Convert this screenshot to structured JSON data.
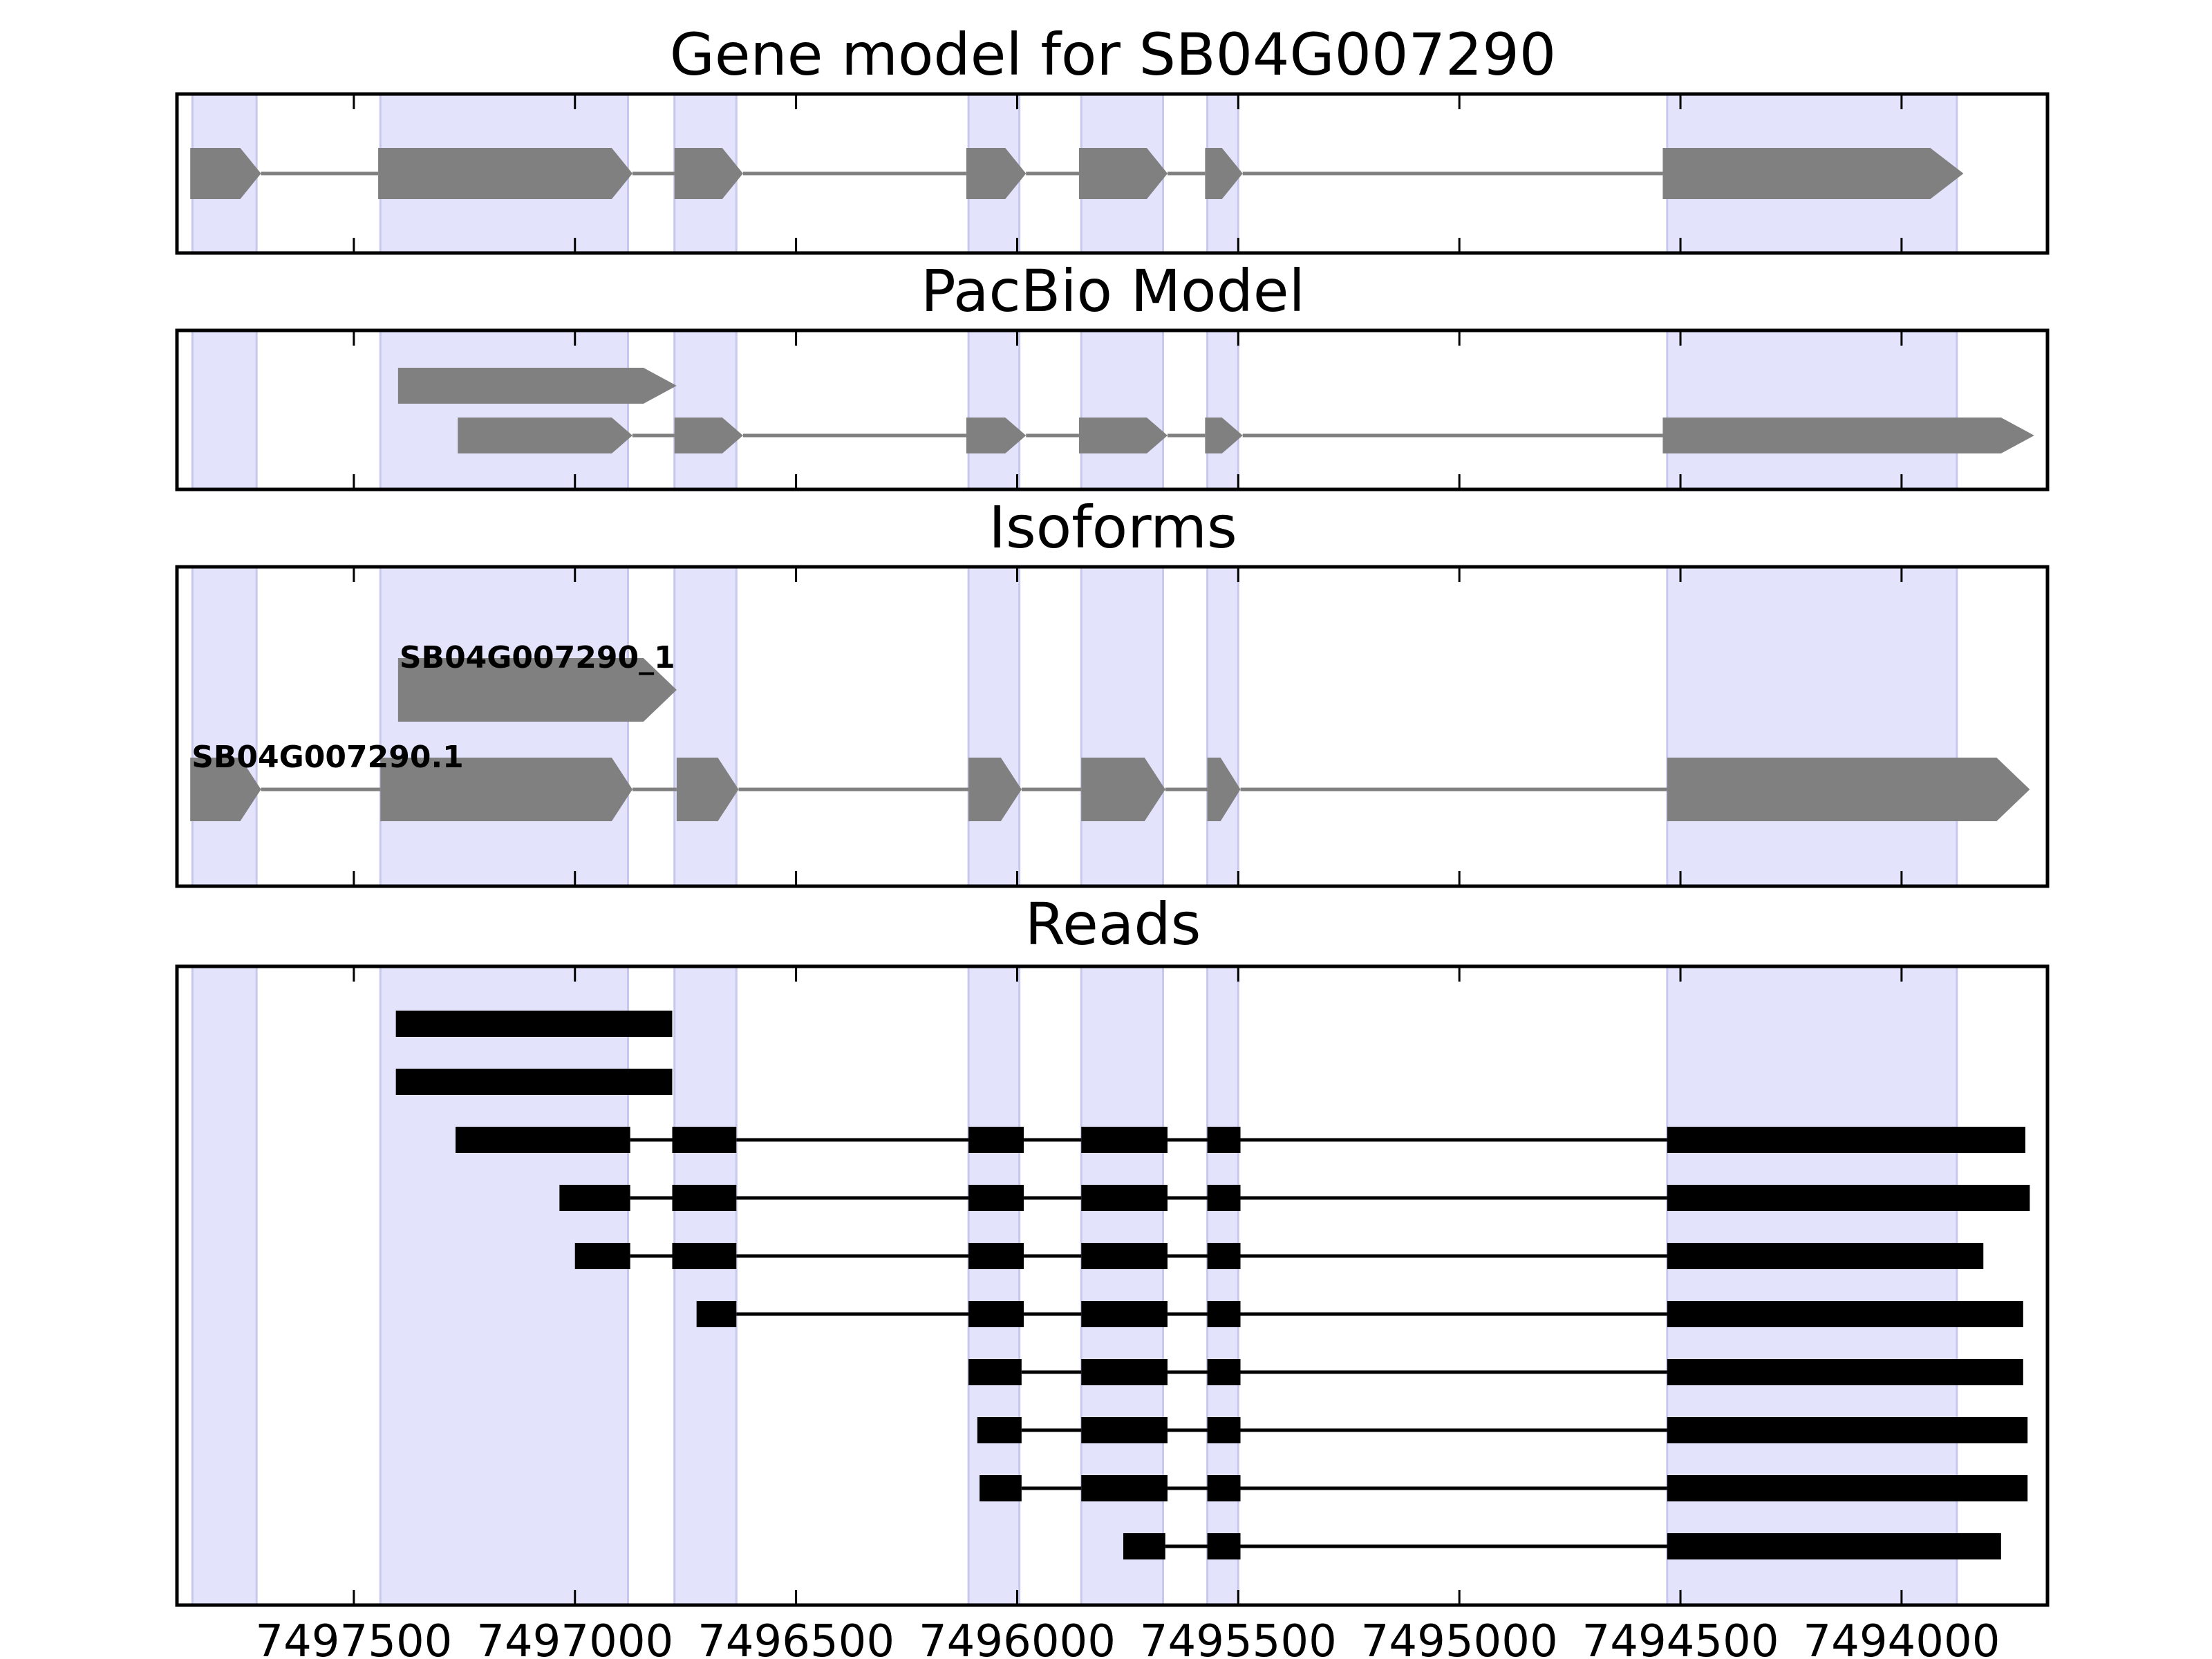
{
  "figure": {
    "panels": [
      {
        "id": "gene-model",
        "title": "Gene model for SB04G007290"
      },
      {
        "id": "pacbio-model",
        "title": "PacBio Model"
      },
      {
        "id": "isoforms",
        "title": "Isoforms"
      },
      {
        "id": "reads",
        "title": "Reads"
      }
    ],
    "x_axis": {
      "orientation": "reversed",
      "range": [
        7497900,
        7493670
      ],
      "ticks": [
        7497500,
        7497000,
        7496500,
        7496000,
        7495500,
        7495000,
        7494500,
        7494000
      ],
      "tick_labels": [
        "7497500",
        "7497000",
        "7496500",
        "7496000",
        "7495500",
        "7495000",
        "7494500",
        "7494000"
      ]
    },
    "exon_highlight_color": "#e3e3fc",
    "feature_color": "#808080",
    "read_color": "#000000"
  },
  "chart_data": {
    "type": "gene-structure",
    "highlighted_exons": [
      [
        7497865,
        7497720
      ],
      [
        7497440,
        7496880
      ],
      [
        7496775,
        7496635
      ],
      [
        7496110,
        7495995
      ],
      [
        7495855,
        7495670
      ],
      [
        7495570,
        7495500
      ],
      [
        7494530,
        7493875
      ]
    ],
    "gene_model": [
      {
        "exons": [
          [
            7497870,
            7497710
          ],
          [
            7497445,
            7496870
          ],
          [
            7496775,
            7496620
          ],
          [
            7496115,
            7495980
          ],
          [
            7495860,
            7495660
          ],
          [
            7495575,
            7495490
          ],
          [
            7494540,
            7493860
          ]
        ]
      }
    ],
    "pacbio_model": [
      {
        "exons": [
          [
            7497400,
            7496770
          ]
        ]
      },
      {
        "exons": [
          [
            7497265,
            7496870
          ],
          [
            7496775,
            7496620
          ],
          [
            7496115,
            7495980
          ],
          [
            7495860,
            7495660
          ],
          [
            7495575,
            7495490
          ],
          [
            7494540,
            7493700
          ]
        ]
      }
    ],
    "isoforms": [
      {
        "name": "SB04G007290_1",
        "exons": [
          [
            7497400,
            7496770
          ]
        ]
      },
      {
        "name": "SB04G007290.1",
        "exons": [
          [
            7497870,
            7497710
          ],
          [
            7497440,
            7496870
          ],
          [
            7496770,
            7496630
          ],
          [
            7496110,
            7495990
          ],
          [
            7495855,
            7495665
          ],
          [
            7495570,
            7495495
          ],
          [
            7494530,
            7493710
          ]
        ]
      }
    ],
    "reads": [
      {
        "exons": [
          [
            7497405,
            7496780
          ]
        ]
      },
      {
        "exons": [
          [
            7497405,
            7496780
          ]
        ]
      },
      {
        "exons": [
          [
            7497270,
            7496875
          ],
          [
            7496780,
            7496635
          ],
          [
            7496110,
            7495985
          ],
          [
            7495855,
            7495660
          ],
          [
            7495570,
            7495495
          ],
          [
            7494530,
            7493720
          ]
        ]
      },
      {
        "exons": [
          [
            7497035,
            7496875
          ],
          [
            7496780,
            7496635
          ],
          [
            7496110,
            7495985
          ],
          [
            7495855,
            7495660
          ],
          [
            7495570,
            7495495
          ],
          [
            7494530,
            7493710
          ]
        ]
      },
      {
        "exons": [
          [
            7497000,
            7496875
          ],
          [
            7496780,
            7496635
          ],
          [
            7496110,
            7495985
          ],
          [
            7495855,
            7495660
          ],
          [
            7495570,
            7495495
          ],
          [
            7494530,
            7493815
          ]
        ]
      },
      {
        "exons": [
          [
            7496725,
            7496635
          ],
          [
            7496110,
            7495985
          ],
          [
            7495855,
            7495660
          ],
          [
            7495570,
            7495495
          ],
          [
            7494530,
            7493725
          ]
        ]
      },
      {
        "exons": [
          [
            7496110,
            7495990
          ],
          [
            7495855,
            7495660
          ],
          [
            7495570,
            7495495
          ],
          [
            7494530,
            7493725
          ]
        ]
      },
      {
        "exons": [
          [
            7496090,
            7495990
          ],
          [
            7495855,
            7495660
          ],
          [
            7495570,
            7495495
          ],
          [
            7494530,
            7493715
          ]
        ]
      },
      {
        "exons": [
          [
            7496085,
            7495990
          ],
          [
            7495855,
            7495660
          ],
          [
            7495570,
            7495495
          ],
          [
            7494530,
            7493715
          ]
        ]
      },
      {
        "exons": [
          [
            7495760,
            7495665
          ],
          [
            7495570,
            7495495
          ],
          [
            7494530,
            7493775
          ]
        ]
      }
    ]
  }
}
